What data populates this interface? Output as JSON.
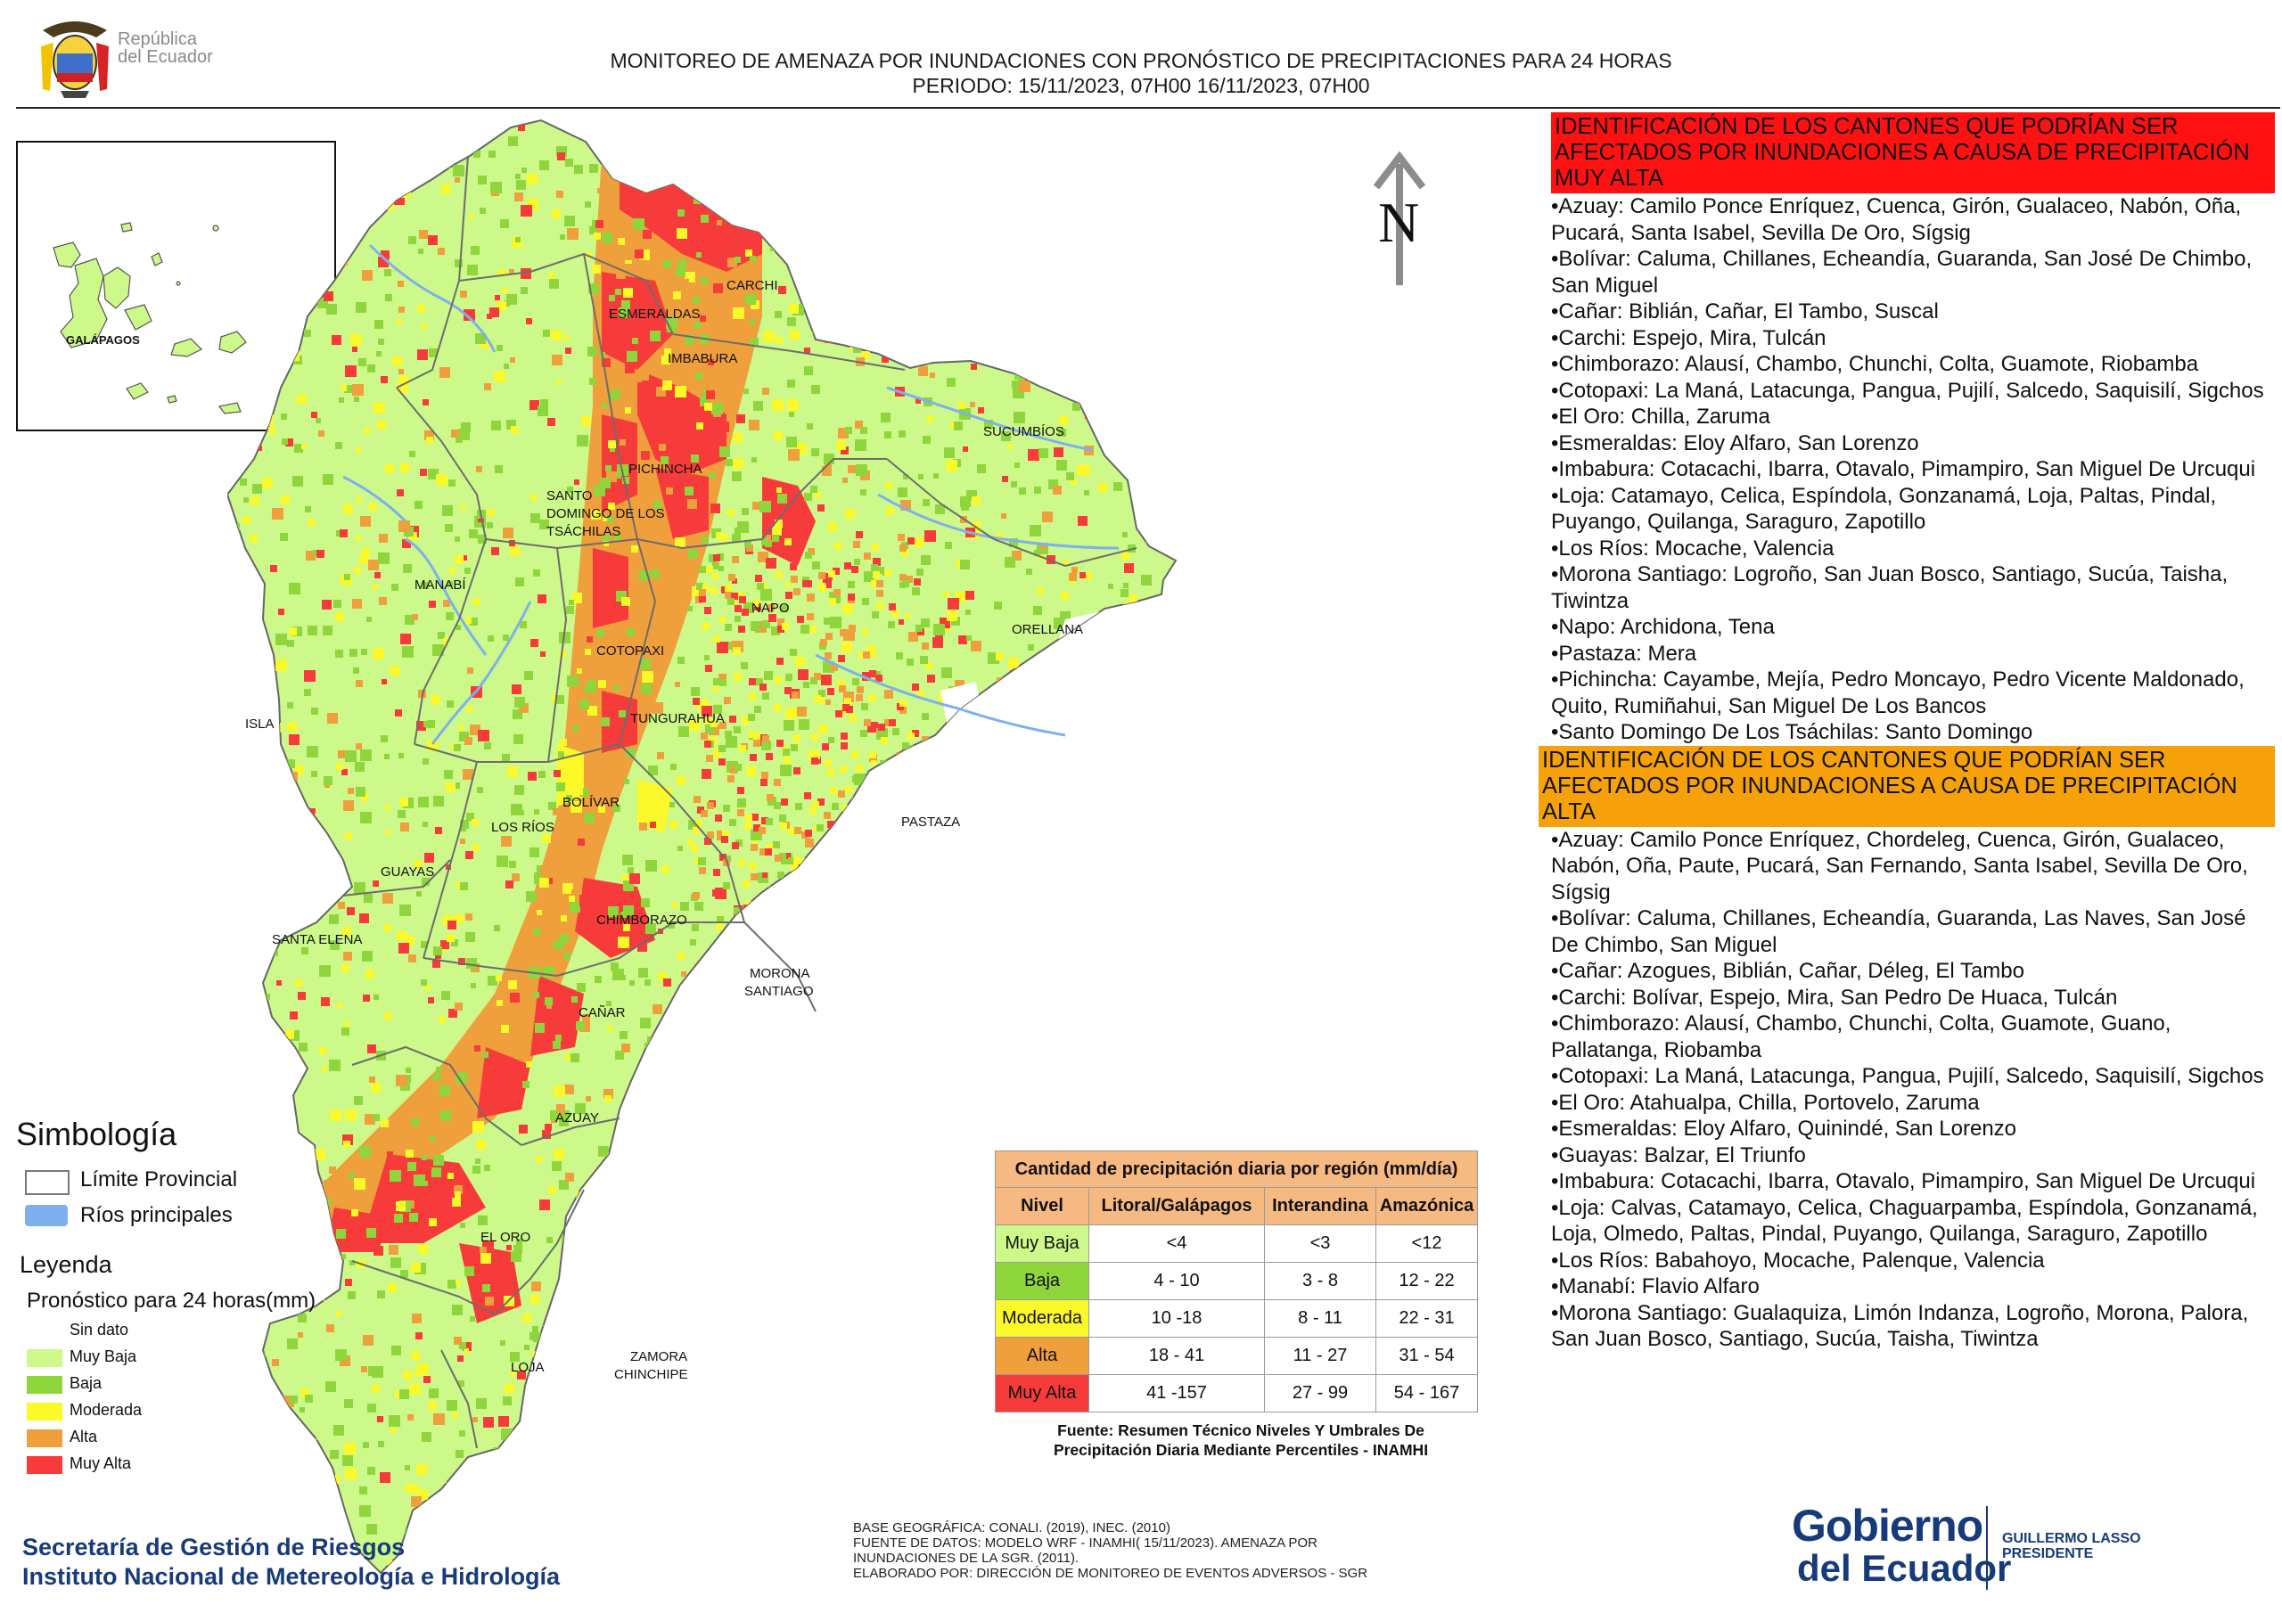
{
  "header": {
    "title_line1": "MONITOREO DE AMENAZA POR INUNDACIONES  CON PRONÓSTICO DE  PRECIPITACIONES PARA 24 HORAS",
    "title_line2": "PERIODO: 15/11/2023, 07H00 16/11/2023, 07H00",
    "logo_line1": "República",
    "logo_line2": "del Ecuador"
  },
  "map": {
    "north_label": "N",
    "inset_label": "GALÁPAGOS",
    "provinces": {
      "carchi": "CARCHI",
      "esmeraldas": "ESMERALDAS",
      "imbabura": "IMBABURA",
      "sucumbios": "SUCUMBÍOS",
      "santo_domingo_1": "SANTO",
      "santo_domingo_2": "DOMINGO DE LOS",
      "santo_domingo_3": "TSÁCHILAS",
      "pichincha": "PICHINCHA",
      "manabi": "MANABÍ",
      "napo": "NAPO",
      "orellana": "ORELLANA",
      "cotopaxi": "COTOPAXI",
      "isla": "ISLA",
      "tungurahua": "TUNGURAHUA",
      "bolivar": "BOLÍVAR",
      "los_rios": "LOS RÍOS",
      "pastaza": "PASTAZA",
      "guayas": "GUAYAS",
      "chimborazo": "CHIMBORAZO",
      "santa_elena": "SANTA ELENA",
      "morona_1": "MORONA",
      "morona_2": "SANTIAGO",
      "canar": "CAÑAR",
      "azuay": "AZUAY",
      "el_oro": "EL ORO",
      "loja": "LOJA",
      "zamora_1": "ZAMORA",
      "zamora_2": "CHINCHIPE"
    },
    "colors": {
      "muy_baja": "#ccf98a",
      "baja": "#8fd53c",
      "moderada": "#fbf92a",
      "alta": "#ef9f3c",
      "muy_alta": "#f73b3b",
      "rivers": "#7eb0ee",
      "boundary": "#6d6d6d"
    }
  },
  "symbology": {
    "title": "Simbología",
    "limite": "Límite Provincial",
    "rios": "Ríos principales",
    "leyenda": "Leyenda",
    "pronostico": "Pronóstico para 24 horas(mm)",
    "items": [
      "Sin dato",
      "Muy Baja",
      "Baja",
      "Moderada",
      "Alta",
      "Muy Alta"
    ]
  },
  "table": {
    "caption": "Cantidad de precipitación diaria por región (mm/día)",
    "headers": [
      "Nivel",
      "Litoral/Galápagos",
      "Interandina",
      "Amazónica"
    ],
    "rows": [
      {
        "nivel": "Muy Baja",
        "litoral": "<4",
        "interandina": "<3",
        "amazonica": "<12",
        "color": "#ccf98a"
      },
      {
        "nivel": "Baja",
        "litoral": "4 - 10",
        "interandina": "3 - 8",
        "amazonica": "12 - 22",
        "color": "#8fd53c"
      },
      {
        "nivel": "Moderada",
        "litoral": "10 -18",
        "interandina": "8 - 11",
        "amazonica": "22 - 31",
        "color": "#fbf92a"
      },
      {
        "nivel": "Alta",
        "litoral": "18 - 41",
        "interandina": "11 - 27",
        "amazonica": "31 - 54",
        "color": "#ef9f3c"
      },
      {
        "nivel": "Muy Alta",
        "litoral": "41 -157",
        "interandina": "27 - 99",
        "amazonica": "54 - 167",
        "color": "#f73b3b"
      }
    ],
    "source_line1": "Fuente: Resumen Técnico Niveles Y Umbrales De",
    "source_line2": "Precipitación Diaria Mediante Percentiles - INAMHI"
  },
  "panel": {
    "muy_alta_heading": "IDENTIFICACIÓN DE LOS CANTONES QUE PODRÍAN SER AFECTADOS POR INUNDACIONES  A CAUSA DE PRECIPITACIÓN MUY ALTA",
    "muy_alta": [
      "Azuay: Camilo Ponce Enríquez, Cuenca, Girón, Gualaceo, Nabón, Oña, Pucará, Santa Isabel, Sevilla De Oro, Sígsig",
      "Bolívar: Caluma, Chillanes, Echeandía, Guaranda, San José De Chimbo, San Miguel",
      "Cañar: Biblián, Cañar, El Tambo, Suscal",
      "Carchi: Espejo, Mira, Tulcán",
      "Chimborazo: Alausí, Chambo, Chunchi, Colta, Guamote, Riobamba",
      "Cotopaxi: La Maná, Latacunga, Pangua, Pujilí, Salcedo, Saquisilí, Sigchos",
      "El Oro: Chilla, Zaruma",
      "Esmeraldas: Eloy Alfaro, San Lorenzo",
      "Imbabura: Cotacachi, Ibarra, Otavalo, Pimampiro, San Miguel De Urcuqui",
      "Loja: Catamayo, Celica, Espíndola, Gonzanamá, Loja, Paltas, Pindal, Puyango, Quilanga, Saraguro, Zapotillo",
      "Los Ríos: Mocache, Valencia",
      "Morona Santiago: Logroño, San Juan Bosco, Santiago, Sucúa, Taisha, Tiwintza",
      "Napo: Archidona, Tena",
      "Pastaza: Mera",
      "Pichincha: Cayambe, Mejía, Pedro Moncayo, Pedro Vicente Maldonado, Quito, Rumiñahui, San Miguel De Los Bancos",
      "Santo Domingo De Los Tsáchilas: Santo Domingo"
    ],
    "alta_heading": "IDENTIFICACIÓN DE LOS CANTONES QUE  PODRÍAN SER AFECTADOS POR INUNDACIONES  A CAUSA DE PRECIPITACIÓN ALTA",
    "alta": [
      "Azuay: Camilo Ponce Enríquez, Chordeleg, Cuenca, Girón, Gualaceo, Nabón, Oña, Paute, Pucará, San Fernando, Santa Isabel, Sevilla De Oro, Sígsig",
      "Bolívar: Caluma, Chillanes, Echeandía, Guaranda, Las Naves, San José De Chimbo, San Miguel",
      "Cañar: Azogues, Biblián, Cañar, Déleg, El Tambo",
      "Carchi: Bolívar, Espejo, Mira, San Pedro De Huaca, Tulcán",
      "Chimborazo: Alausí, Chambo, Chunchi, Colta, Guamote, Guano, Pallatanga, Riobamba",
      "Cotopaxi: La Maná, Latacunga, Pangua, Pujilí, Salcedo, Saquisilí, Sigchos",
      "El Oro: Atahualpa, Chilla, Portovelo, Zaruma",
      "Esmeraldas: Eloy Alfaro, Quinindé, San Lorenzo",
      "Guayas: Balzar, El Triunfo",
      "Imbabura: Cotacachi, Ibarra, Otavalo, Pimampiro, San Miguel De Urcuqui",
      "Loja: Calvas, Catamayo, Celica, Chaguarpamba, Espíndola, Gonzanamá, Loja, Olmedo, Paltas, Pindal, Puyango, Quilanga, Saraguro, Zapotillo",
      "Los Ríos: Babahoyo, Mocache, Palenque, Valencia",
      "Manabí: Flavio Alfaro",
      "Morona Santiago: Gualaquiza, Limón Indanza, Logroño, Morona, Palora, San Juan Bosco, Santiago, Sucúa, Taisha, Tiwintza"
    ]
  },
  "footer": {
    "org_line1": "Secretaría de Gestión de Riesgos",
    "org_line2": "Instituto Nacional de Metereología e Hidrología",
    "base_line1": "BASE GEOGRÁFICA: CONALI. (2019), INEC. (2010)",
    "base_line2": "FUENTE DE DATOS: MODELO WRF - INAMHI( 15/11/2023).  AMENAZA POR",
    "base_line3": "INUNDACIONES DE LA SGR. (2011).",
    "base_line4": "ELABORADO POR: DIRECCIÓN DE MONITOREO DE EVENTOS ADVERSOS - SGR",
    "gob_line1": "Gobierno",
    "gob_line2": "del Ecuador",
    "pres_line1": "GUILLERMO LASSO",
    "pres_line2": "PRESIDENTE"
  }
}
